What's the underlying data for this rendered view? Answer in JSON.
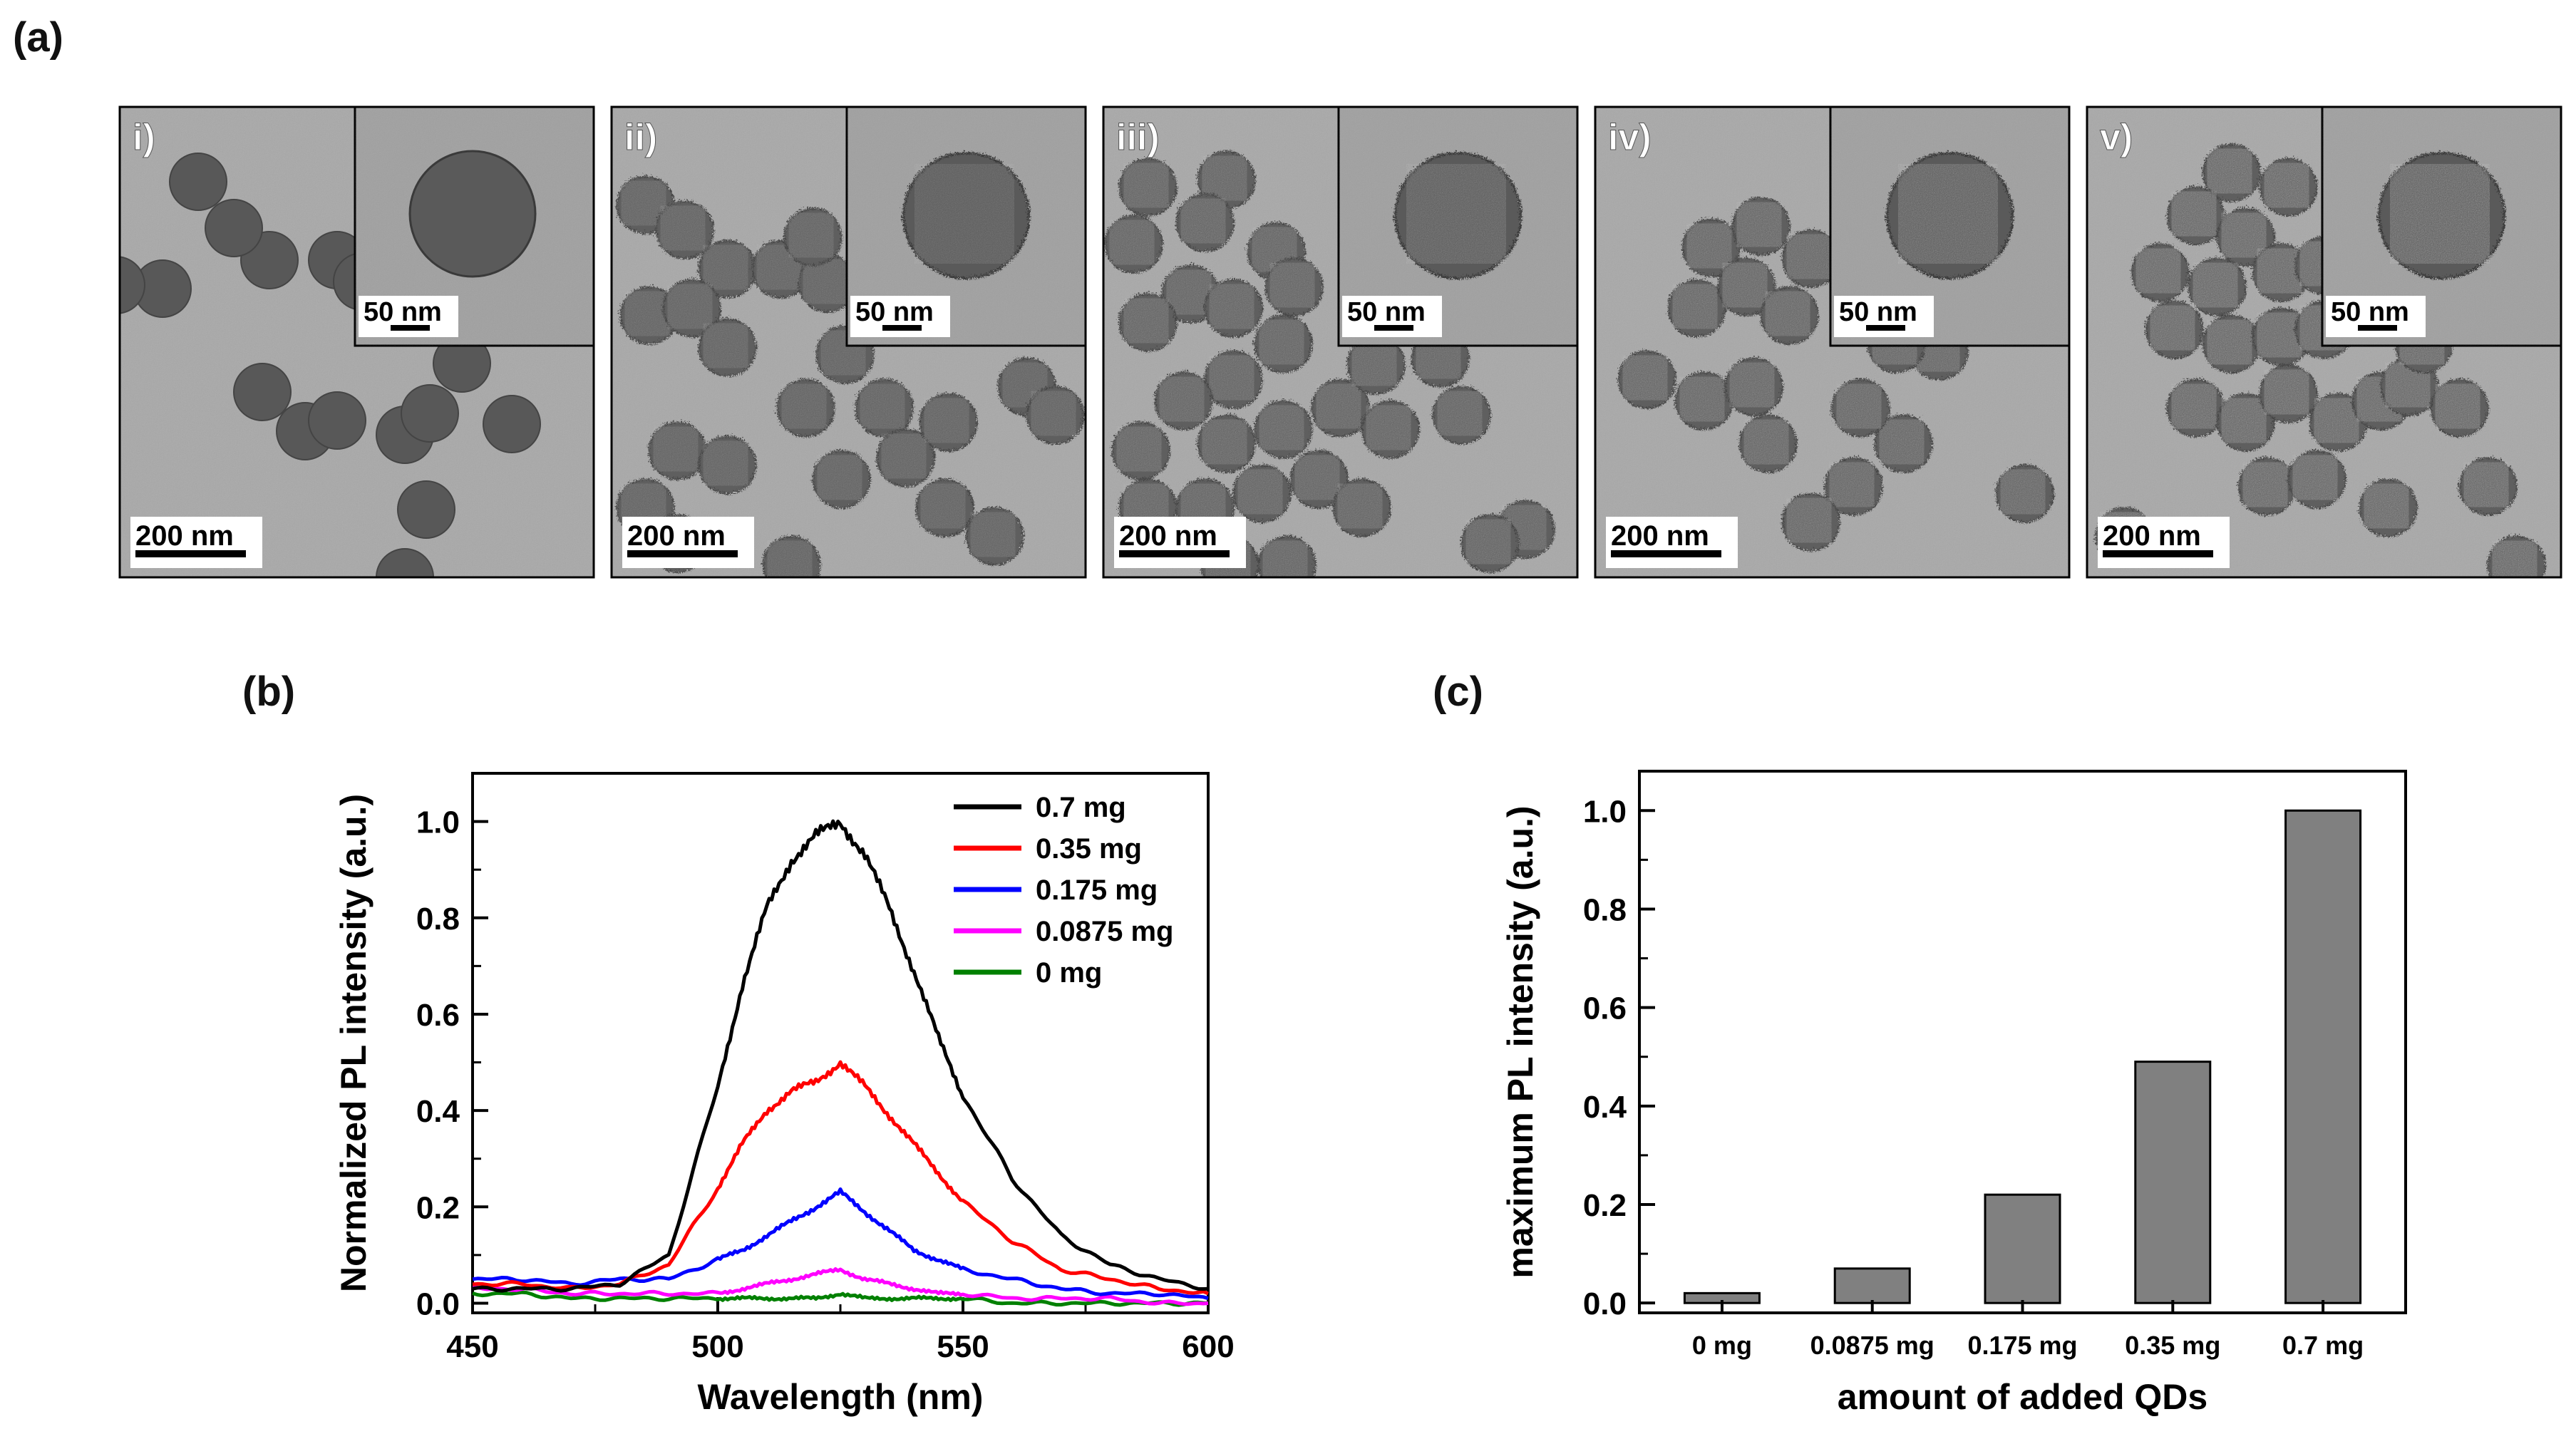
{
  "figure": {
    "label_a": "(a)",
    "label_b": "(b)",
    "label_c": "(c)"
  },
  "tem_panels": [
    {
      "label": "i)",
      "scale_main": "200 nm",
      "scale_inset": "50 nm",
      "texture": 0.0
    },
    {
      "label": "ii)",
      "scale_main": "200 nm",
      "scale_inset": "50 nm",
      "texture": 0.25
    },
    {
      "label": "iii)",
      "scale_main": "200 nm",
      "scale_inset": "50 nm",
      "texture": 0.5
    },
    {
      "label": "iv)",
      "scale_main": "200 nm",
      "scale_inset": "50 nm",
      "texture": 0.75
    },
    {
      "label": "v)",
      "scale_main": "200 nm",
      "scale_inset": "50 nm",
      "texture": 1.0
    }
  ],
  "chart_data": [
    {
      "type": "line",
      "title": "(b)",
      "xlabel": "Wavelength (nm)",
      "ylabel": "Normalized PL intensity (a.u.)",
      "xlim": [
        450,
        600
      ],
      "ylim": [
        -0.02,
        1.1
      ],
      "xticks": [
        450,
        500,
        550,
        600
      ],
      "xtick_labels": [
        "450",
        "500",
        "550",
        "600"
      ],
      "yticks": [
        0.0,
        0.2,
        0.4,
        0.6,
        0.8,
        1.0
      ],
      "ytick_labels": [
        "0.0",
        "0.2",
        "0.4",
        "0.6",
        "0.8",
        "1.0"
      ],
      "legend_position": "top-right",
      "peak_wavelength": 525,
      "x": [
        450,
        460,
        470,
        480,
        490,
        500,
        505,
        510,
        515,
        520,
        525,
        530,
        535,
        540,
        545,
        550,
        560,
        570,
        580,
        590,
        600
      ],
      "series": [
        {
          "name": "0.7 mg",
          "color": "#000000",
          "values": [
            0.03,
            0.03,
            0.03,
            0.04,
            0.1,
            0.45,
            0.66,
            0.82,
            0.92,
            0.97,
            1.0,
            0.93,
            0.82,
            0.69,
            0.55,
            0.43,
            0.26,
            0.14,
            0.08,
            0.05,
            0.03
          ]
        },
        {
          "name": "0.35 mg",
          "color": "#ff0000",
          "values": [
            0.04,
            0.04,
            0.03,
            0.04,
            0.08,
            0.24,
            0.33,
            0.4,
            0.44,
            0.46,
            0.5,
            0.45,
            0.39,
            0.33,
            0.27,
            0.21,
            0.13,
            0.07,
            0.05,
            0.03,
            0.02
          ]
        },
        {
          "name": "0.175 mg",
          "color": "#0000ff",
          "values": [
            0.05,
            0.05,
            0.04,
            0.05,
            0.05,
            0.09,
            0.11,
            0.14,
            0.17,
            0.2,
            0.23,
            0.19,
            0.15,
            0.11,
            0.09,
            0.07,
            0.05,
            0.03,
            0.02,
            0.02,
            0.01
          ]
        },
        {
          "name": "0.0875 mg",
          "color": "#ff00ff",
          "values": [
            0.03,
            0.03,
            0.02,
            0.02,
            0.02,
            0.02,
            0.03,
            0.04,
            0.05,
            0.06,
            0.07,
            0.05,
            0.04,
            0.03,
            0.02,
            0.02,
            0.01,
            0.01,
            0.01,
            0.0,
            0.0
          ]
        },
        {
          "name": "0 mg",
          "color": "#008000",
          "values": [
            0.02,
            0.02,
            0.01,
            0.01,
            0.01,
            0.01,
            0.01,
            0.01,
            0.01,
            0.01,
            0.02,
            0.01,
            0.01,
            0.01,
            0.01,
            0.01,
            0.0,
            0.0,
            0.0,
            0.0,
            0.0
          ]
        }
      ]
    },
    {
      "type": "bar",
      "title": "(c)",
      "xlabel": "amount of added QDs",
      "ylabel": "maximum PL intensity (a.u.)",
      "ylim": [
        -0.02,
        1.08
      ],
      "yticks": [
        0.0,
        0.2,
        0.4,
        0.6,
        0.8,
        1.0
      ],
      "ytick_labels": [
        "0.0",
        "0.2",
        "0.4",
        "0.6",
        "0.8",
        "1.0"
      ],
      "categories": [
        "0 mg",
        "0.0875 mg",
        "0.175 mg",
        "0.35 mg",
        "0.7 mg"
      ],
      "values": [
        0.02,
        0.07,
        0.22,
        0.49,
        1.0
      ],
      "bar_color": "#808080"
    }
  ]
}
